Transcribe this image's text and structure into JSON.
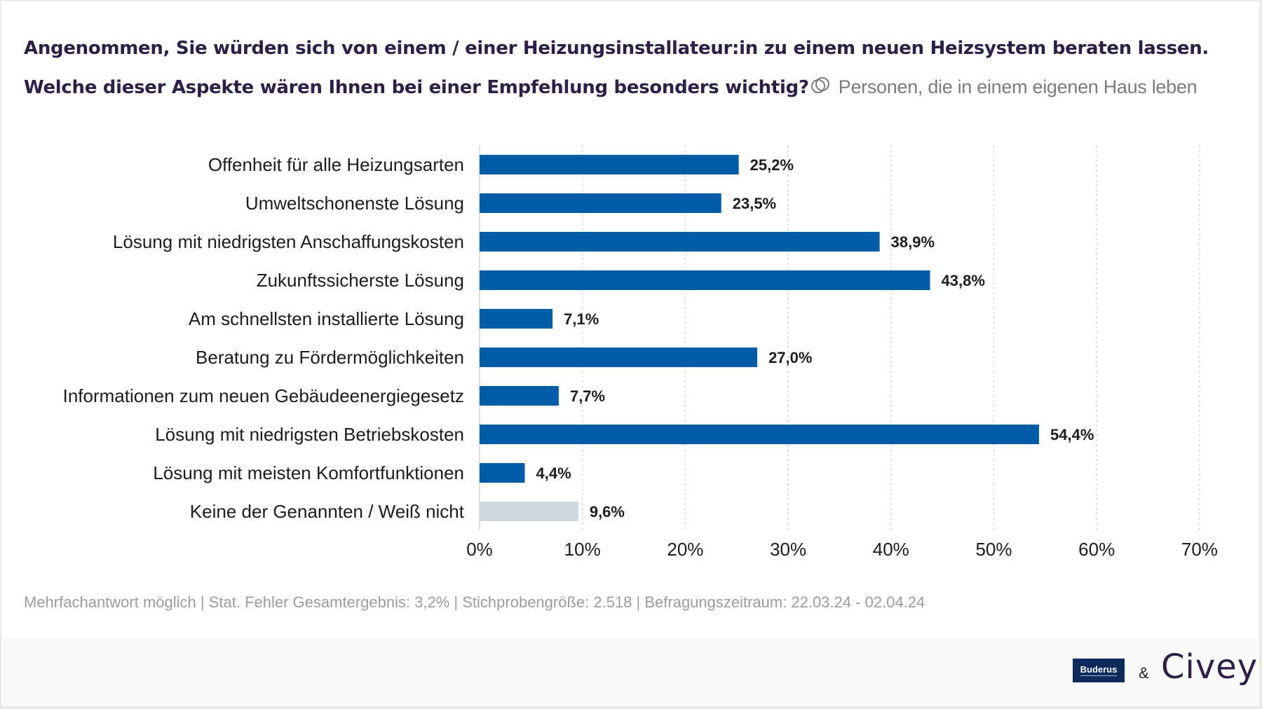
{
  "header": {
    "title": "Angenommen, Sie würden sich von einem / einer Heizungsinstallateur:in zu einem neuen Heizsystem beraten lassen. Welche dieser Aspekte wären Ihnen bei einer Empfehlung besonders wichtig?",
    "filter_icon": "overlapping-circles-icon",
    "subtitle": "Personen, die in einem eigenen Haus leben"
  },
  "colors": {
    "bar_primary": "#005ea8",
    "bar_neutral": "#cfd8df",
    "title": "#2d1f45",
    "subtitle": "#7b7b7b",
    "note": "#9b9b9b"
  },
  "chart_data": {
    "type": "bar",
    "orientation": "horizontal",
    "title": "Angenommen, Sie würden sich von einem / einer Heizungsinstallateur:in zu einem neuen Heizsystem beraten lassen. Welche dieser Aspekte wären Ihnen bei einer Empfehlung besonders wichtig?",
    "subtitle": "Personen, die in einem eigenen Haus leben",
    "xlabel": "",
    "ylabel": "",
    "xlim": [
      0,
      70
    ],
    "x_ticks": [
      0,
      10,
      20,
      30,
      40,
      50,
      60,
      70
    ],
    "x_tick_labels": [
      "0%",
      "10%",
      "20%",
      "30%",
      "40%",
      "50%",
      "60%",
      "70%"
    ],
    "grid": "vertical dotted",
    "legend": "none",
    "categories": [
      "Offenheit für alle Heizungsarten",
      "Umweltschonenste Lösung",
      "Lösung mit niedrigsten Anschaffungskosten",
      "Zukunftssicherste Lösung",
      "Am schnellsten installierte Lösung",
      "Beratung zu Fördermöglichkeiten",
      "Informationen zum neuen Gebäudeenergiegesetz",
      "Lösung mit niedrigsten Betriebskosten",
      "Lösung mit meisten Komfortfunktionen",
      "Keine der Genannten / Weiß nicht"
    ],
    "values": [
      25.2,
      23.5,
      38.9,
      43.8,
      7.1,
      27.0,
      7.7,
      54.4,
      4.4,
      9.6
    ],
    "value_labels": [
      "25,2%",
      "23,5%",
      "38,9%",
      "43,8%",
      "7,1%",
      "27,0%",
      "7,7%",
      "54,4%",
      "4,4%",
      "9,6%"
    ],
    "neutral_flags": [
      false,
      false,
      false,
      false,
      false,
      false,
      false,
      false,
      false,
      true
    ]
  },
  "footer": {
    "note": "Mehrfachantwort möglich | Stat. Fehler Gesamtergebnis: 3,2% | Stichprobengröße: 2.518 | Befragungszeitraum: 22.03.24 - 02.04.24",
    "logo_partner": "Buderus",
    "ampersand": "&",
    "logo_brand": "Civey"
  }
}
